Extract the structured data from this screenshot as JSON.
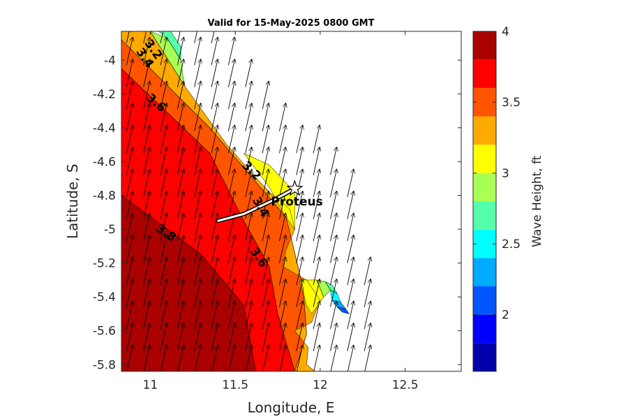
{
  "chart_data": {
    "type": "contour-map",
    "title": "Valid for 15-May-2025 0800 GMT",
    "xlabel": "Longitude, E",
    "ylabel": "Latitude, S",
    "xlim": [
      10.83,
      12.83
    ],
    "ylim": [
      -5.84,
      -3.83
    ],
    "x_ticks": [
      11,
      11.5,
      12,
      12.5
    ],
    "x_tick_labels": [
      "11",
      "11.5",
      "12",
      "12.5"
    ],
    "y_ticks": [
      -4,
      -4.2,
      -4.4,
      -4.6,
      -4.8,
      -5,
      -5.2,
      -5.4,
      -5.6,
      -5.8
    ],
    "y_tick_labels": [
      "-4",
      "-4.2",
      "-4.4",
      "-4.6",
      "-4.8",
      "-5",
      "-5.2",
      "-5.4",
      "-5.6",
      "-5.8"
    ],
    "colorbar": {
      "label": "Wave Height, ft",
      "range": [
        1.6,
        4.0
      ],
      "ticks": [
        2,
        2.5,
        3,
        3.5,
        4
      ],
      "tick_labels": [
        "2",
        "2.5",
        "3",
        "3.5",
        "4"
      ],
      "colors": [
        "#0000aa",
        "#0000ff",
        "#0055ff",
        "#00aaff",
        "#00ffff",
        "#55ffaa",
        "#aaff55",
        "#ffff00",
        "#ffaa00",
        "#ff5500",
        "#ff0000",
        "#aa0000"
      ]
    },
    "filled_regions": [
      {
        "level": 3.8,
        "color": "#aa0000",
        "polygon": [
          [
            10.83,
            -4.8
          ],
          [
            11.3,
            -5.15
          ],
          [
            11.55,
            -5.45
          ],
          [
            11.62,
            -5.84
          ],
          [
            10.83,
            -5.84
          ]
        ]
      },
      {
        "level": 3.6,
        "color": "#ff0000",
        "polygon": [
          [
            10.83,
            -4.05
          ],
          [
            11.35,
            -4.55
          ],
          [
            11.55,
            -4.95
          ],
          [
            11.7,
            -5.22
          ],
          [
            11.75,
            -5.5
          ],
          [
            11.85,
            -5.84
          ],
          [
            11.62,
            -5.84
          ],
          [
            11.55,
            -5.45
          ],
          [
            11.3,
            -5.15
          ],
          [
            10.83,
            -4.8
          ]
        ]
      },
      {
        "level": 3.4,
        "color": "#ff5500",
        "polygon": [
          [
            10.83,
            -3.88
          ],
          [
            11.35,
            -4.4
          ],
          [
            11.62,
            -4.72
          ],
          [
            11.8,
            -4.93
          ],
          [
            11.9,
            -5.35
          ],
          [
            11.92,
            -5.62
          ],
          [
            11.85,
            -5.84
          ],
          [
            11.75,
            -5.5
          ],
          [
            11.7,
            -5.22
          ],
          [
            11.55,
            -4.95
          ],
          [
            11.35,
            -4.55
          ],
          [
            10.83,
            -4.05
          ]
        ]
      },
      {
        "level": 3.2,
        "color": "#ffaa00",
        "polygon": [
          [
            10.83,
            -3.83
          ],
          [
            11.0,
            -3.83
          ],
          [
            11.2,
            -4.15
          ],
          [
            11.45,
            -4.5
          ],
          [
            11.6,
            -4.67
          ],
          [
            11.7,
            -4.78
          ],
          [
            11.82,
            -4.88
          ],
          [
            11.85,
            -5.0
          ],
          [
            11.8,
            -5.12
          ],
          [
            11.78,
            -5.22
          ],
          [
            11.92,
            -5.3
          ],
          [
            12.0,
            -5.42
          ],
          [
            11.95,
            -5.55
          ],
          [
            11.85,
            -5.6
          ],
          [
            11.93,
            -5.7
          ],
          [
            11.92,
            -5.8
          ],
          [
            11.97,
            -5.84
          ],
          [
            11.85,
            -5.84
          ],
          [
            11.92,
            -5.62
          ],
          [
            11.9,
            -5.35
          ],
          [
            11.8,
            -4.93
          ],
          [
            11.62,
            -4.72
          ],
          [
            11.35,
            -4.4
          ],
          [
            10.83,
            -3.88
          ]
        ]
      },
      {
        "level": 3.0,
        "color": "#ffff00",
        "polygon": [
          [
            11.55,
            -4.55
          ],
          [
            11.7,
            -4.62
          ],
          [
            11.85,
            -4.78
          ],
          [
            11.85,
            -5.0
          ],
          [
            11.8,
            -4.93
          ],
          [
            11.7,
            -4.75
          ]
        ]
      },
      {
        "level": 3.0,
        "color": "#ffff00",
        "polygon": [
          [
            11.88,
            -5.3
          ],
          [
            11.98,
            -5.3
          ],
          [
            12.02,
            -5.4
          ],
          [
            11.95,
            -5.5
          ],
          [
            11.92,
            -5.45
          ]
        ]
      },
      {
        "level": 2.8,
        "color": "#aaff55",
        "polygon": [
          [
            11.0,
            -3.83
          ],
          [
            11.1,
            -3.87
          ],
          [
            11.18,
            -4.0
          ],
          [
            11.2,
            -4.15
          ]
        ]
      },
      {
        "level": 2.8,
        "color": "#aaff55",
        "polygon": [
          [
            11.98,
            -5.3
          ],
          [
            12.03,
            -5.31
          ],
          [
            12.06,
            -5.36
          ],
          [
            12.02,
            -5.4
          ]
        ]
      },
      {
        "level": 2.6,
        "color": "#55ffaa",
        "polygon": [
          [
            11.05,
            -3.83
          ],
          [
            11.12,
            -3.83
          ],
          [
            11.18,
            -3.92
          ],
          [
            11.18,
            -4.0
          ],
          [
            11.1,
            -3.87
          ]
        ]
      },
      {
        "level": 2.6,
        "color": "#55ffaa",
        "polygon": [
          [
            12.03,
            -5.31
          ],
          [
            12.07,
            -5.33
          ],
          [
            12.1,
            -5.38
          ],
          [
            12.06,
            -5.36
          ]
        ]
      },
      {
        "level": 2.4,
        "color": "#00ffff",
        "polygon": [
          [
            12.06,
            -5.36
          ],
          [
            12.1,
            -5.38
          ],
          [
            12.12,
            -5.43
          ],
          [
            12.07,
            -5.42
          ]
        ]
      },
      {
        "level": 2.2,
        "color": "#00aaff",
        "polygon": [
          [
            12.07,
            -5.42
          ],
          [
            12.12,
            -5.43
          ],
          [
            12.15,
            -5.47
          ],
          [
            12.1,
            -5.46
          ]
        ]
      },
      {
        "level": 2.0,
        "color": "#0055ff",
        "polygon": [
          [
            12.1,
            -5.46
          ],
          [
            12.15,
            -5.47
          ],
          [
            12.17,
            -5.5
          ],
          [
            12.13,
            -5.49
          ]
        ]
      }
    ],
    "contour_labels": [
      {
        "text": "3.2",
        "lon": 11.0,
        "lat": -3.95,
        "angle": 55
      },
      {
        "text": "3.4",
        "lon": 10.95,
        "lat": -4.0,
        "angle": 55
      },
      {
        "text": "3.6",
        "lon": 11.02,
        "lat": -4.27,
        "angle": 40
      },
      {
        "text": "3.2",
        "lon": 11.58,
        "lat": -4.67,
        "angle": 45
      },
      {
        "text": "3.4",
        "lon": 11.63,
        "lat": -4.88,
        "angle": 60
      },
      {
        "text": "3.8",
        "lon": 11.08,
        "lat": -5.04,
        "angle": 35
      },
      {
        "text": "3.6",
        "lon": 11.62,
        "lat": -5.18,
        "angle": 55
      }
    ],
    "station": {
      "name": "Proteus",
      "lon": 11.85,
      "lat": -4.76
    },
    "track": [
      [
        11.4,
        -4.95
      ],
      [
        11.55,
        -4.91
      ],
      [
        11.72,
        -4.83
      ],
      [
        11.85,
        -4.76
      ]
    ],
    "wave_direction": "arrows pointing north-northeast across the sea area"
  }
}
